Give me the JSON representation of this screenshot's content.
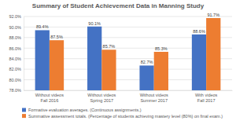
{
  "chart_data": {
    "type": "bar",
    "title": "Summary of Student Achievement Data in Manning Study",
    "categories": [
      "Without videos\nFall 2016",
      "Without videos\nSpring 2017",
      "Without videos\nSummer 2017",
      "With videos\nFall 2017"
    ],
    "series": [
      {
        "name": "Formative evaluation averages. (Continuous assignments.)",
        "color": "#4472c4",
        "values": [
          89.4,
          90.1,
          82.7,
          88.6
        ],
        "value_labels": [
          "89.4%",
          "90.1%",
          "82.7%",
          "88.6%"
        ]
      },
      {
        "name": "Summative assessment totals. (Percentage of students achieving mastery level (80%) on final exam.)",
        "color": "#ed7d31",
        "values": [
          87.5,
          85.7,
          85.3,
          91.7
        ],
        "value_labels": [
          "87.5%",
          "85.7%",
          "85.3%",
          "91.7%"
        ]
      }
    ],
    "ylim": [
      78,
      92
    ],
    "yticks": [
      {
        "value": 78,
        "label": "78.0%"
      },
      {
        "value": 80,
        "label": "80.0%"
      },
      {
        "value": 82,
        "label": "82.0%"
      },
      {
        "value": 84,
        "label": "84.0%"
      },
      {
        "value": 86,
        "label": "86.0%"
      },
      {
        "value": 88,
        "label": "88.0%"
      },
      {
        "value": 90,
        "label": "90.0%"
      },
      {
        "value": 92,
        "label": "92.0%"
      }
    ],
    "grid": true,
    "legend": "bottom",
    "data_labels": true
  }
}
